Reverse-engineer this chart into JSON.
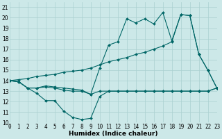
{
  "bg_color": "#cce8e8",
  "grid_color": "#aad0d0",
  "line_color": "#006666",
  "line1_x": [
    0,
    1,
    2,
    3,
    4,
    5,
    6,
    7,
    8,
    9,
    10,
    11,
    12,
    13,
    14,
    15,
    16,
    17,
    18,
    19,
    20,
    21,
    22,
    23
  ],
  "line1_y": [
    14,
    13.9,
    13.3,
    13.3,
    13.4,
    13.3,
    13.1,
    13.0,
    13.0,
    12.7,
    13.0,
    13.0,
    13.0,
    13.0,
    13.0,
    13.0,
    13.0,
    13.0,
    13.0,
    13.0,
    13.0,
    13.0,
    13.0,
    13.3
  ],
  "line2_x": [
    0,
    1,
    2,
    3,
    4,
    5,
    6,
    7,
    8,
    9,
    10,
    11,
    12,
    13,
    14,
    15,
    16,
    17,
    18,
    19,
    20,
    21,
    22,
    23
  ],
  "line2_y": [
    14,
    13.9,
    13.3,
    12.8,
    12.1,
    12.1,
    11.1,
    10.5,
    10.3,
    10.4,
    12.5,
    13.0,
    13.0,
    13.0,
    13.0,
    13.0,
    13.0,
    13.0,
    13.0,
    13.0,
    13.0,
    13.0,
    13.0,
    13.3
  ],
  "line3_x": [
    0,
    1,
    2,
    3,
    4,
    5,
    6,
    7,
    8,
    9,
    10,
    11,
    12,
    13,
    14,
    15,
    16,
    17,
    18,
    19,
    20,
    21,
    22,
    23
  ],
  "line3_y": [
    14,
    13.9,
    13.3,
    13.3,
    13.5,
    13.4,
    13.3,
    13.2,
    13.1,
    12.7,
    15.2,
    17.4,
    17.7,
    19.9,
    19.5,
    19.9,
    19.4,
    20.5,
    17.8,
    20.3,
    20.2,
    16.5,
    15.0,
    13.3
  ],
  "line4_x": [
    0,
    1,
    2,
    3,
    4,
    5,
    6,
    7,
    8,
    9,
    10,
    11,
    12,
    13,
    14,
    15,
    16,
    17,
    18,
    19,
    20,
    21,
    22,
    23
  ],
  "line4_y": [
    14,
    14.1,
    14.2,
    14.4,
    14.5,
    14.6,
    14.8,
    14.9,
    15.0,
    15.2,
    15.5,
    15.8,
    16.0,
    16.2,
    16.5,
    16.7,
    17.0,
    17.3,
    17.7,
    20.3,
    20.2,
    16.5,
    15.0,
    13.3
  ],
  "xlim": [
    0,
    23
  ],
  "ylim": [
    10,
    21.5
  ],
  "xlabel": "Humidex (Indice chaleur)",
  "xticks": [
    0,
    1,
    2,
    3,
    4,
    5,
    6,
    7,
    8,
    9,
    10,
    11,
    12,
    13,
    14,
    15,
    16,
    17,
    18,
    19,
    20,
    21,
    22,
    23
  ],
  "yticks": [
    10,
    11,
    12,
    13,
    14,
    15,
    16,
    17,
    18,
    19,
    20,
    21
  ],
  "xlabel_fontsize": 6.5,
  "tick_fontsize": 5.5
}
